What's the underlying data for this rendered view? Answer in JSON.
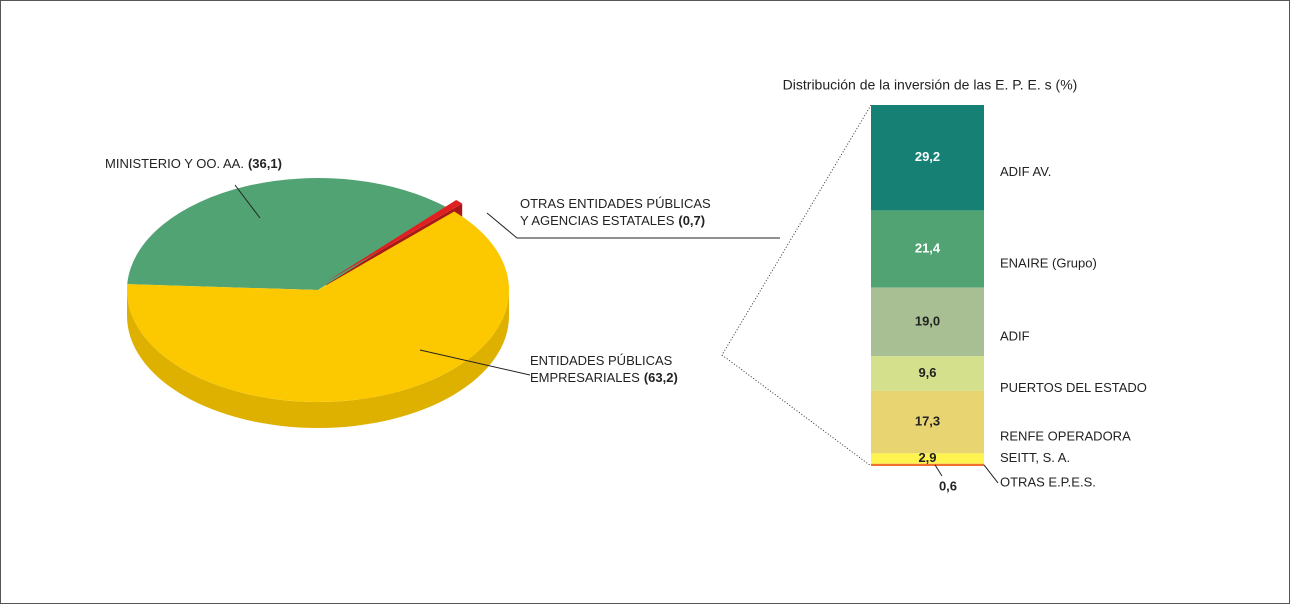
{
  "chart_data": [
    {
      "type": "pie3d",
      "categories": [
        [
          "MINISTERIO Y OO. AA."
        ],
        [
          "OTRAS ENTIDADES PÚBLICAS",
          "Y AGENCIAS ESTATALES"
        ],
        [
          "ENTIDADES PÚBLICAS",
          "EMPRESARIALES"
        ]
      ],
      "values": [
        36.1,
        0.7,
        63.2
      ],
      "value_labels": [
        "(36,1)",
        "(0,7)",
        "(63,2)"
      ],
      "colors": [
        "#52a374",
        "#e02020",
        "#fcc900"
      ]
    },
    {
      "type": "stacked-bar",
      "title": "Distribución de la inversión de las E. P. E. s (%)",
      "categories": [
        "ADIF AV.",
        "ENAIRE (Grupo)",
        "ADIF",
        "PUERTOS DEL ESTADO",
        "RENFE OPERADORA",
        "SEITT, S. A.",
        "OTRAS E.P.E.S."
      ],
      "values": [
        29.2,
        21.4,
        19.0,
        9.6,
        17.3,
        2.9,
        0.6
      ],
      "value_labels": [
        "29,2",
        "21,4",
        "19,0",
        "9,6",
        "17,3",
        "2,9",
        "0,6"
      ],
      "colors": [
        "#168074",
        "#52a374",
        "#a8bf93",
        "#d4e08b",
        "#e9d472",
        "#fff350",
        "#f07030"
      ]
    }
  ]
}
